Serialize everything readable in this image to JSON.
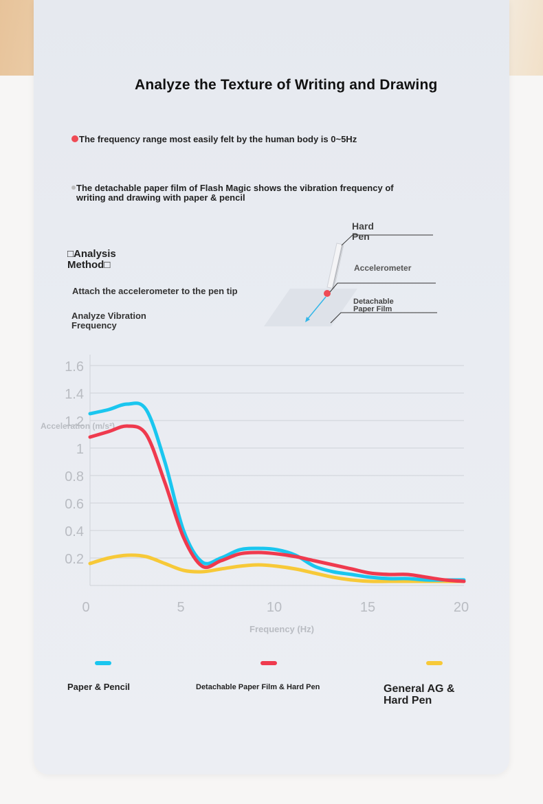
{
  "title": "Analyze the Texture of Writing and Drawing",
  "info": [
    "The frequency range most easily felt by the human body is 0~5Hz",
    "The detachable paper film of Flash Magic shows the vibration frequency of writing and drawing with paper & pencil"
  ],
  "method": {
    "title": "□Analysis Method□",
    "steps": [
      "Attach the accelerometer to the pen tip",
      "Analyze Vibration Frequency"
    ]
  },
  "diagram": {
    "pen_label": "Hard Pen",
    "accelerometer_label": "Accelerometer",
    "film_label": "Detachable Paper Film"
  },
  "colors": {
    "series1": "#1ac6ef",
    "series2": "#ef3a4e",
    "series3": "#f7c938",
    "axis": "#b9bcc2"
  },
  "chart_data": {
    "type": "line",
    "xlabel": "Frequency (Hz)",
    "ylabel": "Acceleration (m/s²)",
    "xlim": [
      0,
      20
    ],
    "ylim": [
      0,
      1.6
    ],
    "x_ticks": [
      0,
      5,
      10,
      15,
      20
    ],
    "y_ticks": [
      0.2,
      0.4,
      0.6,
      0.8,
      1,
      1.2,
      1.4,
      1.6
    ],
    "grid": true,
    "legend": "bottom",
    "series": [
      {
        "name": "Paper & Pencil",
        "x": [
          0,
          1,
          2,
          3,
          4,
          5,
          6,
          7,
          8,
          9,
          10,
          11,
          12,
          13,
          14,
          15,
          16,
          17,
          18,
          19,
          20
        ],
        "y": [
          1.25,
          1.28,
          1.32,
          1.28,
          0.9,
          0.4,
          0.17,
          0.2,
          0.26,
          0.27,
          0.26,
          0.22,
          0.14,
          0.1,
          0.08,
          0.06,
          0.05,
          0.05,
          0.04,
          0.04,
          0.04
        ]
      },
      {
        "name": "Detachable Paper Film & Hard Pen",
        "x": [
          0,
          1,
          2,
          3,
          4,
          5,
          6,
          7,
          8,
          9,
          10,
          11,
          12,
          13,
          14,
          15,
          16,
          17,
          18,
          19,
          20
        ],
        "y": [
          1.08,
          1.12,
          1.16,
          1.1,
          0.75,
          0.35,
          0.14,
          0.18,
          0.23,
          0.24,
          0.23,
          0.21,
          0.18,
          0.15,
          0.12,
          0.09,
          0.08,
          0.08,
          0.06,
          0.04,
          0.03
        ]
      },
      {
        "name": "General AG & Hard Pen",
        "x": [
          0,
          1,
          2,
          3,
          4,
          5,
          6,
          7,
          8,
          9,
          10,
          11,
          12,
          13,
          14,
          15,
          16,
          17,
          18,
          19,
          20
        ],
        "y": [
          0.16,
          0.2,
          0.22,
          0.21,
          0.16,
          0.11,
          0.1,
          0.12,
          0.14,
          0.15,
          0.14,
          0.12,
          0.09,
          0.06,
          0.04,
          0.03,
          0.03,
          0.03,
          0.03,
          0.03,
          0.03
        ]
      }
    ]
  }
}
